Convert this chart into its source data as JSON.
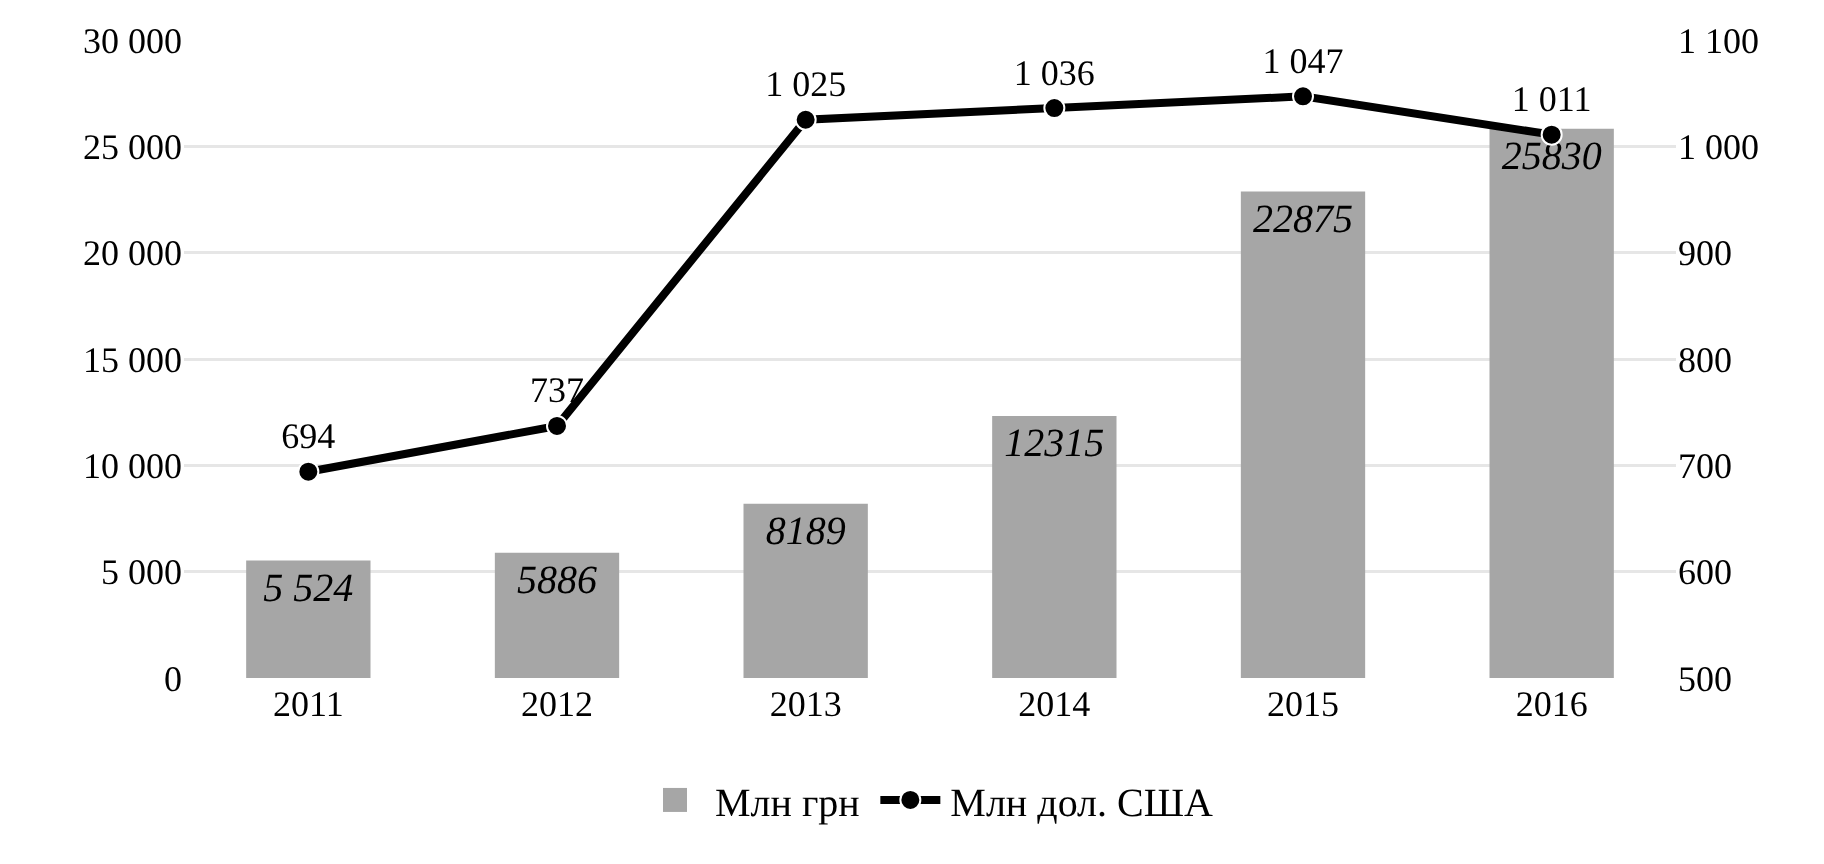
{
  "chart_data": {
    "type": "bar",
    "categories": [
      "2011",
      "2012",
      "2013",
      "2014",
      "2015",
      "2016"
    ],
    "series": [
      {
        "name": "Млн грн",
        "color": "#a6a6a6",
        "values": [
          5524,
          5886,
          8189,
          12315,
          22875,
          25830
        ],
        "value_labels": [
          "5 524",
          "5886",
          "8189",
          "12315",
          "22875",
          "25830"
        ]
      },
      {
        "name": "Млн дол. США",
        "type": "line",
        "axis": "y2",
        "color": "#000000",
        "values": [
          694,
          737,
          1025,
          1036,
          1047,
          1011
        ],
        "value_labels": [
          "694",
          "737",
          "1 025",
          "1 036",
          "1 047",
          "1 011"
        ]
      }
    ],
    "ylim": [
      0,
      30000
    ],
    "yticks": [
      0,
      {
        "value": 5000,
        "label": "5 000"
      },
      {
        "value": 10000,
        "label": "10 000"
      },
      {
        "value": 15000,
        "label": "15 000"
      },
      {
        "value": 20000,
        "label": "20 000"
      },
      {
        "value": 25000,
        "label": "25 000"
      },
      {
        "value": 30000,
        "label": "30 000"
      }
    ],
    "y2lim": [
      500,
      1100
    ],
    "y2ticks": [
      500,
      600,
      700,
      800,
      900,
      {
        "value": 1000,
        "label": "1 000"
      },
      {
        "value": 1100,
        "label": "1 100"
      }
    ],
    "grid": "y",
    "legend": "bottom",
    "marker": "circle",
    "line_style": "solid"
  }
}
